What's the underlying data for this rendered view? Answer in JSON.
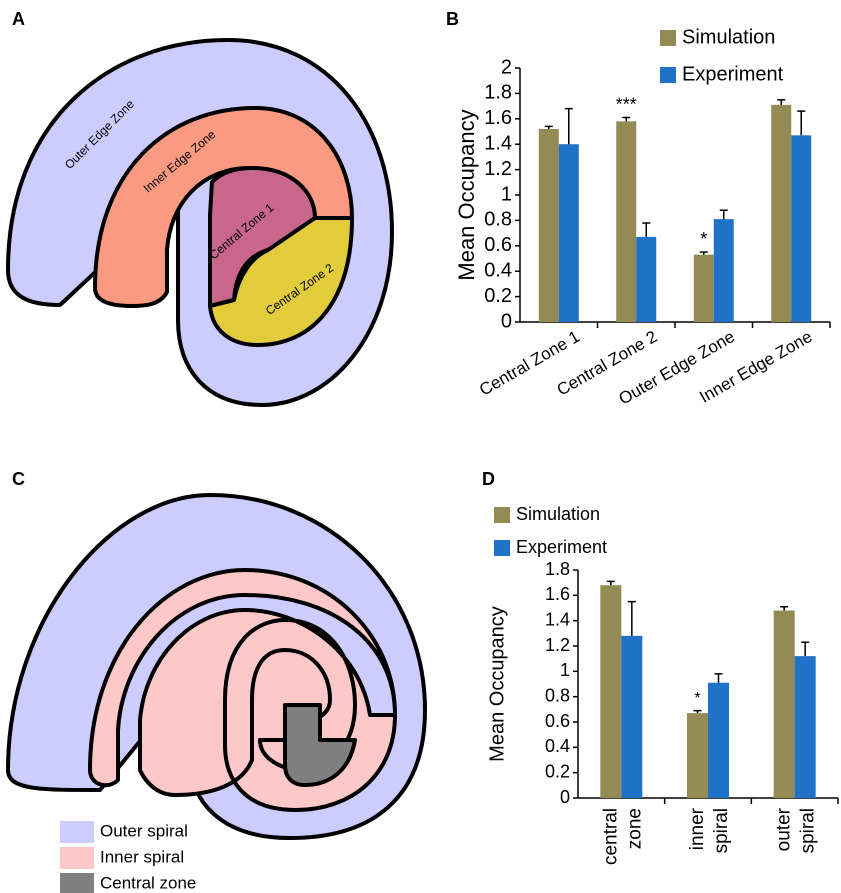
{
  "panel_labels": [
    "A",
    "B",
    "C",
    "D"
  ],
  "diagram_a": {
    "zones": [
      "Outer Edge Zone",
      "Inner Edge Zone",
      "Central Zone 1",
      "Central Zone 2"
    ]
  },
  "diagram_c": {
    "legend": [
      {
        "label": "Outer spiral",
        "color": "#ccccff"
      },
      {
        "label": "Inner spiral",
        "color": "#ffc8c8"
      },
      {
        "label": "Central zone",
        "color": "#7f7f7f"
      }
    ]
  },
  "chart_data": [
    {
      "type": "bar",
      "ylabel": "Mean Occupancy",
      "categories": [
        "Central Zone 1",
        "Central Zone 2",
        "Outer Edge Zone",
        "Inner Edge Zone"
      ],
      "series": [
        {
          "name": "Simulation",
          "color": "#948a54",
          "values": [
            1.52,
            1.58,
            0.53,
            1.71
          ],
          "errors": [
            0.02,
            0.03,
            0.02,
            0.04
          ],
          "significance": [
            null,
            "***",
            "*",
            null
          ]
        },
        {
          "name": "Experiment",
          "color": "#1f72c8",
          "values": [
            1.4,
            0.67,
            0.81,
            1.47
          ],
          "errors": [
            0.28,
            0.11,
            0.07,
            0.19
          ]
        }
      ],
      "ylim": [
        0,
        2
      ],
      "yticks": [
        0,
        0.2,
        0.4,
        0.6,
        0.8,
        1,
        1.2,
        1.4,
        1.6,
        1.8,
        2
      ]
    },
    {
      "type": "bar",
      "ylabel": "Mean Occupancy",
      "categories": [
        [
          "central",
          "zone"
        ],
        [
          "inner",
          "spiral"
        ],
        [
          "outer",
          "spiral"
        ]
      ],
      "series": [
        {
          "name": "Simulation",
          "color": "#948a54",
          "values": [
            1.68,
            0.67,
            1.48
          ],
          "errors": [
            0.03,
            0.02,
            0.03
          ],
          "significance": [
            null,
            "*",
            null
          ]
        },
        {
          "name": "Experiment",
          "color": "#1f72c8",
          "values": [
            1.28,
            0.91,
            1.12
          ],
          "errors": [
            0.27,
            0.07,
            0.11
          ]
        }
      ],
      "ylim": [
        0,
        1.8
      ],
      "yticks": [
        0,
        0.2,
        0.4,
        0.6,
        0.8,
        1,
        1.2,
        1.4,
        1.6,
        1.8
      ]
    }
  ]
}
